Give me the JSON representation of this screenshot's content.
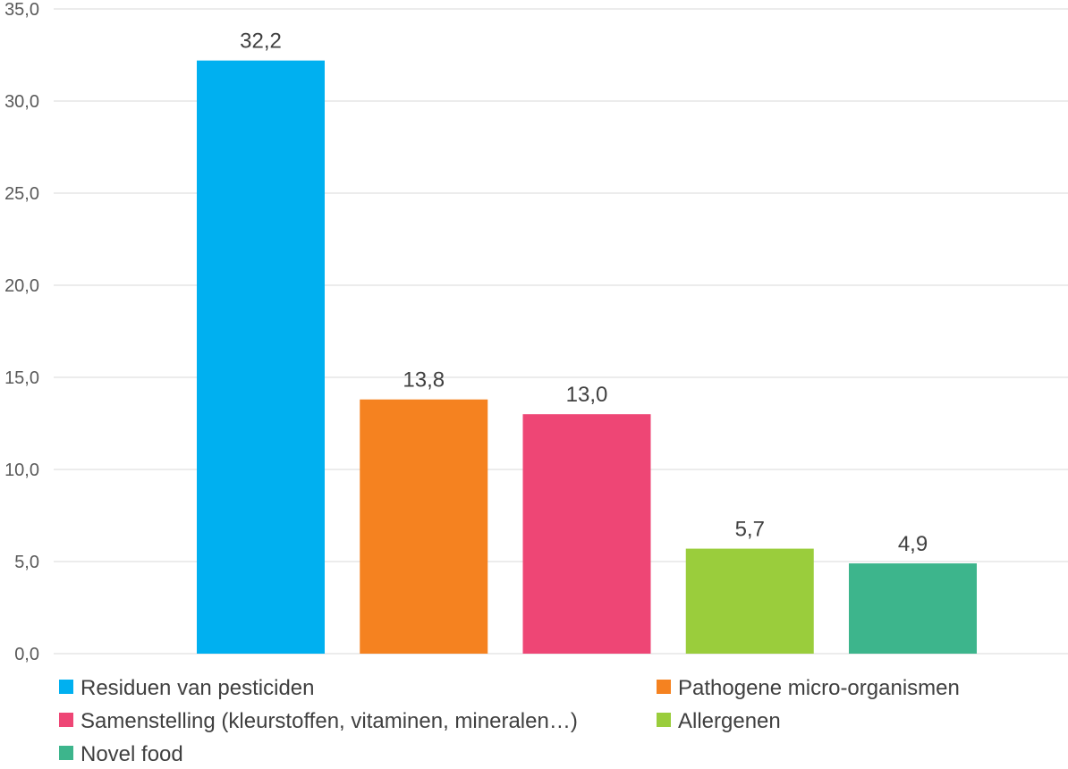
{
  "chart_data": {
    "type": "bar",
    "title": "",
    "xlabel": "",
    "ylabel": "",
    "ylim": [
      0,
      35
    ],
    "y_ticks": [
      "0,0",
      "5,0",
      "10,0",
      "15,0",
      "20,0",
      "25,0",
      "30,0",
      "35,0"
    ],
    "grid": true,
    "legend_position": "bottom",
    "categories": [
      "Residuen van pesticiden",
      "Pathogene micro-organismen",
      "Samenstelling (kleurstoffen, vitaminen, mineralen…)",
      "Allergenen",
      "Novel food"
    ],
    "values": [
      32.2,
      13.8,
      13.0,
      5.7,
      4.9
    ],
    "value_labels": [
      "32,2",
      "13,8",
      "13,0",
      "5,7",
      "4,9"
    ],
    "colors": [
      "#00B0F0",
      "#F58220",
      "#EE4675",
      "#9ACD3C",
      "#3DB58C"
    ]
  }
}
